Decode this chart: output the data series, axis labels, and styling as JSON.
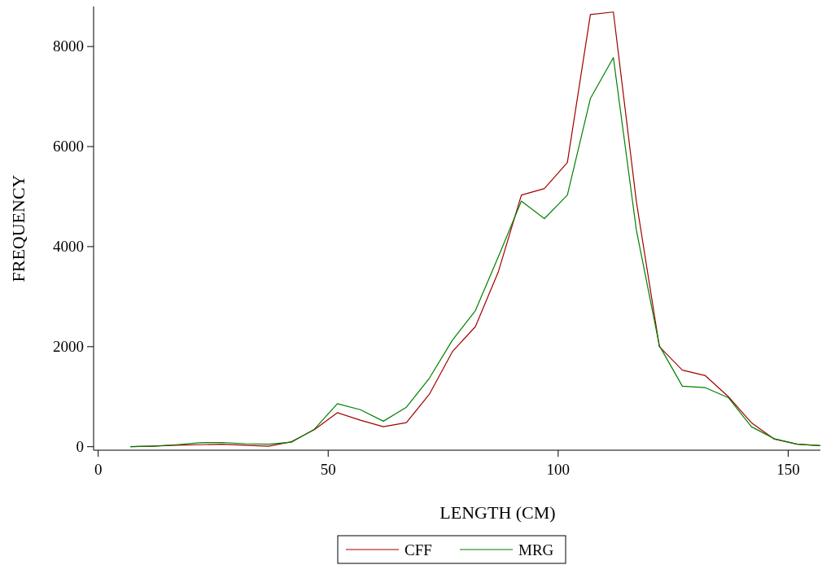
{
  "chart_data": {
    "type": "line",
    "xlabel": "LENGTH (CM)",
    "ylabel": "FREQUENCY",
    "x": [
      7,
      12,
      17,
      22,
      27,
      32,
      37,
      42,
      47,
      52,
      57,
      62,
      67,
      72,
      77,
      82,
      87,
      92,
      97,
      102,
      107,
      112,
      117,
      122,
      127,
      132,
      137,
      142,
      147,
      152,
      157
    ],
    "series": [
      {
        "name": "CFF",
        "color": "#a00000",
        "values": [
          0,
          15,
          30,
          40,
          50,
          30,
          10,
          100,
          340,
          680,
          530,
          400,
          480,
          1050,
          1900,
          2400,
          3500,
          5030,
          5160,
          5680,
          8640,
          8690,
          4900,
          2000,
          1530,
          1420,
          1000,
          480,
          150,
          50,
          20
        ]
      },
      {
        "name": "MRG",
        "color": "#008000",
        "values": [
          0,
          10,
          40,
          80,
          85,
          60,
          50,
          90,
          350,
          860,
          740,
          510,
          790,
          1370,
          2130,
          2720,
          3800,
          4910,
          4560,
          5030,
          6960,
          7780,
          4330,
          2020,
          1210,
          1180,
          980,
          400,
          160,
          50,
          20
        ]
      }
    ],
    "xlim": [
      -1,
      157
    ],
    "ylim": [
      -70,
      8800
    ],
    "xticks": [
      0,
      50,
      100,
      150
    ],
    "yticks": [
      0,
      2000,
      4000,
      6000,
      8000
    ],
    "grid": false,
    "legend": "bottom",
    "marker": "none",
    "line_style": "solid"
  }
}
